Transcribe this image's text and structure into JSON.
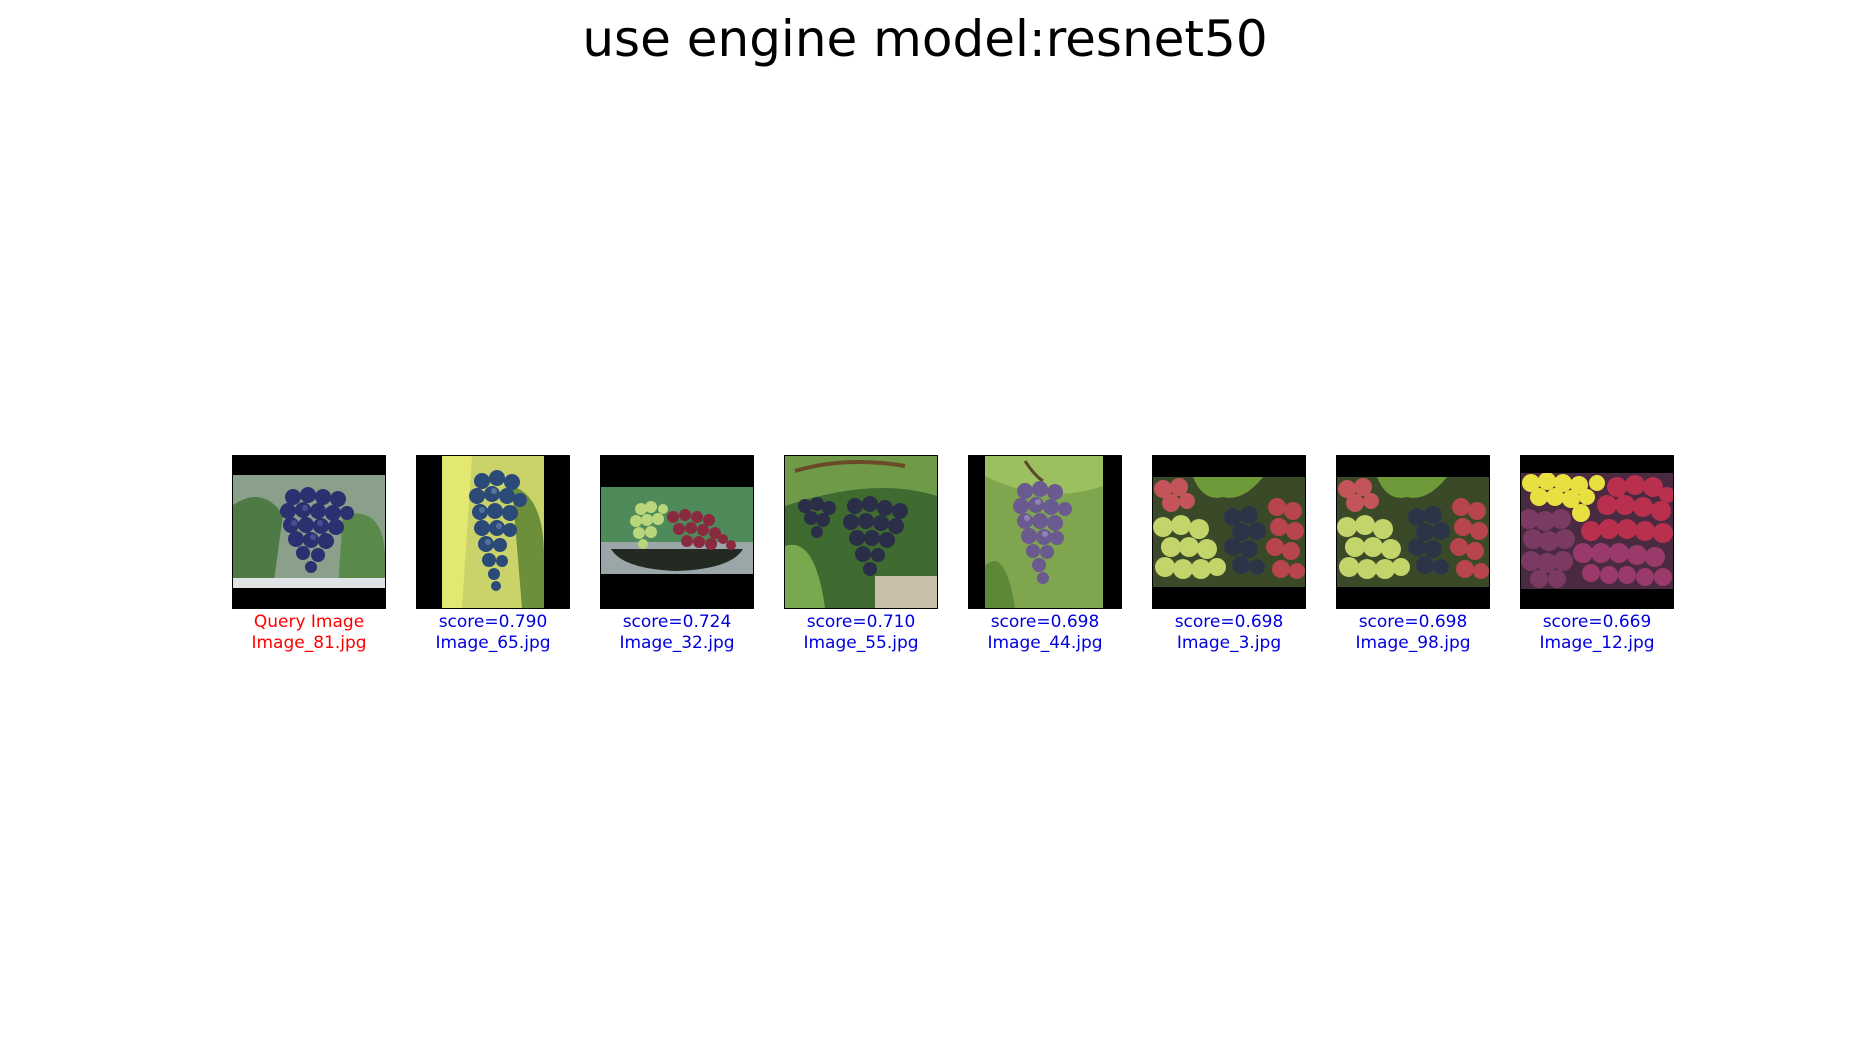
{
  "title": "use engine model:resnet50",
  "colors": {
    "query_caption": "#ff0000",
    "result_caption": "#0000dd",
    "letterbox": "#000000"
  },
  "query": {
    "label": "Query Image",
    "file": "Image_81.jpg",
    "thumb": "blue-grape-cluster-on-vine"
  },
  "results": [
    {
      "score": "score=0.790",
      "file": "Image_65.jpg",
      "thumb": "dark-blue-grape-cluster-tall"
    },
    {
      "score": "score=0.724",
      "file": "Image_32.jpg",
      "thumb": "green-and-red-grapes-in-bowl"
    },
    {
      "score": "score=0.710",
      "file": "Image_55.jpg",
      "thumb": "dark-grape-clusters-on-vine"
    },
    {
      "score": "score=0.698",
      "file": "Image_44.jpg",
      "thumb": "purple-grape-cluster-tall"
    },
    {
      "score": "score=0.698",
      "file": "Image_3.jpg",
      "thumb": "red-green-dark-grapes-mix"
    },
    {
      "score": "score=0.698",
      "file": "Image_98.jpg",
      "thumb": "red-green-dark-grapes-mix"
    },
    {
      "score": "score=0.669",
      "file": "Image_12.jpg",
      "thumb": "yellow-red-purple-grapes-mix"
    }
  ]
}
